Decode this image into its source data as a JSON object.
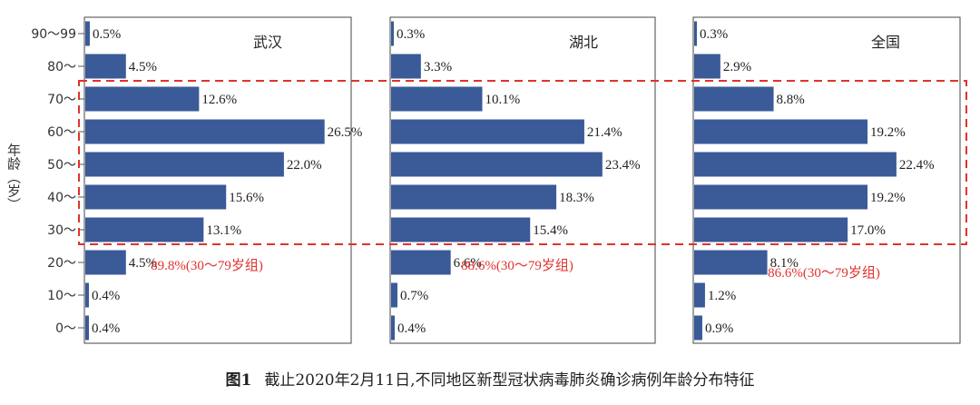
{
  "chart_data": {
    "type": "bar",
    "orientation": "horizontal",
    "ylabel": "年龄（岁）",
    "categories": [
      "90～99",
      "80～",
      "70～",
      "60～",
      "50～",
      "40～",
      "30～",
      "20～",
      "10～",
      "0～"
    ],
    "highlight_range": [
      "30～",
      "70～"
    ],
    "panels": [
      {
        "title": "武汉",
        "values": [
          0.5,
          4.5,
          12.6,
          26.5,
          22.0,
          15.6,
          13.1,
          4.5,
          0.4,
          0.4
        ],
        "labels": [
          "0.5%",
          "4.5%",
          "12.6%",
          "26.5%",
          "22.0%",
          "15.6%",
          "13.1%",
          "4.5%",
          "0.4%",
          "0.4%"
        ],
        "annotation": "89.8%(30～79岁组)"
      },
      {
        "title": "湖北",
        "values": [
          0.3,
          3.3,
          10.1,
          21.4,
          23.4,
          18.3,
          15.4,
          6.6,
          0.7,
          0.4
        ],
        "labels": [
          "0.3%",
          "3.3%",
          "10.1%",
          "21.4%",
          "23.4%",
          "18.3%",
          "15.4%",
          "6.6%",
          "0.7%",
          "0.4%"
        ],
        "annotation": "88.6%(30～79岁组)"
      },
      {
        "title": "全国",
        "values": [
          0.3,
          2.9,
          8.8,
          19.2,
          22.4,
          19.2,
          17.0,
          8.1,
          1.2,
          0.9
        ],
        "labels": [
          "0.3%",
          "2.9%",
          "8.8%",
          "19.2%",
          "22.4%",
          "19.2%",
          "17.0%",
          "8.1%",
          "1.2%",
          "0.9%"
        ],
        "annotation": "86.6%(30～79岁组)"
      }
    ],
    "colors": {
      "bar": "#3a5a98",
      "highlight": "#e0322d"
    }
  },
  "caption": {
    "figure_label": "图1",
    "text": "截止2020年2月11日,不同地区新型冠状病毒肺炎确诊病例年龄分布特征"
  }
}
